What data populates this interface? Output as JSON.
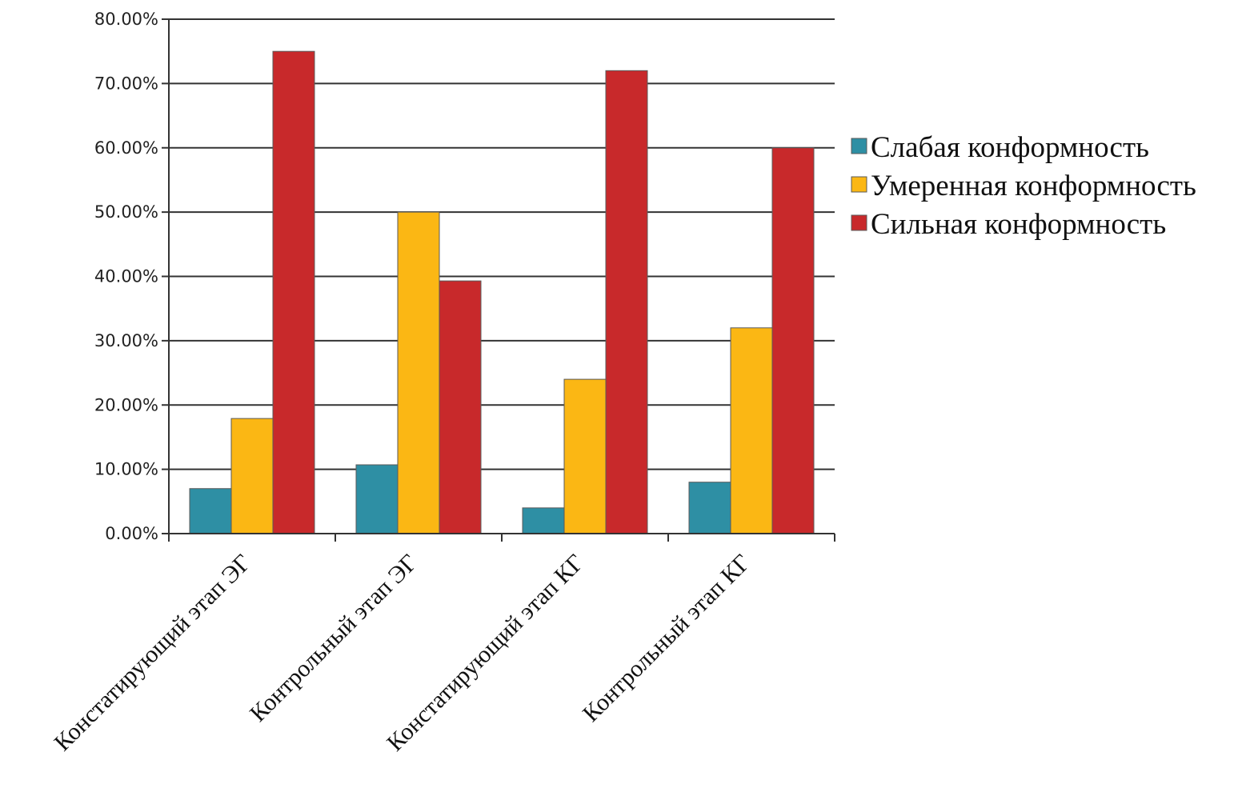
{
  "chart_data": {
    "type": "bar",
    "categories": [
      "Констатирующий этап ЭГ",
      "Контрольный этап ЭГ",
      "Констатирующий этап КГ",
      "Контрольный этап КГ"
    ],
    "series": [
      {
        "name": "Слабая конформность",
        "color": "#2e8fa4",
        "values": [
          7,
          10.7,
          4,
          8
        ]
      },
      {
        "name": "Умеренная конформность",
        "color": "#fbb714",
        "values": [
          17.9,
          50,
          24,
          32
        ]
      },
      {
        "name": "Сильная конформность",
        "color": "#c8292b",
        "values": [
          75,
          39.3,
          72,
          60
        ]
      }
    ],
    "y_ticks": [
      "0.00%",
      "10.00%",
      "20.00%",
      "30.00%",
      "40.00%",
      "50.00%",
      "60.00%",
      "70.00%",
      "80.00%"
    ],
    "ylim": [
      0,
      80
    ],
    "grid": true,
    "legend_position": "right",
    "title": "",
    "xlabel": "",
    "ylabel": ""
  }
}
